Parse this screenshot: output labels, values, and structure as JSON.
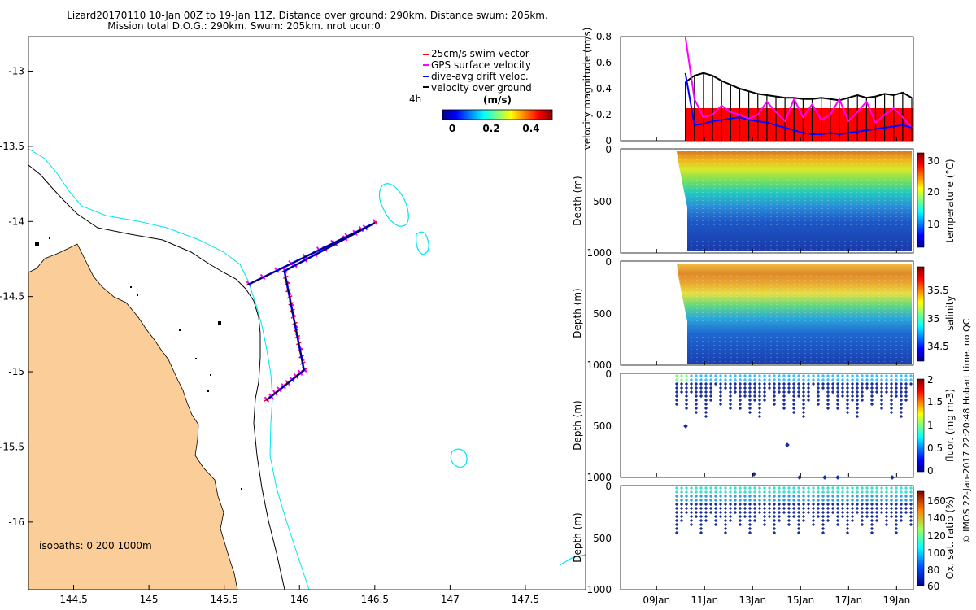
{
  "colors": {
    "land": "#fbcd98",
    "cyan": "#00e5ee",
    "red": "#ff0000",
    "magenta": "#ff00ff",
    "blue": "#0000ff",
    "black": "#000000",
    "grid": "#000000"
  },
  "chart_data": [
    {
      "type": "map",
      "title_line1": "Lizard20170110 10-Jan 00Z to 19-Jan 11Z. Distance over ground: 290km. Distance swum: 205km.",
      "title_line2": "Mission total D.O.G.: 290km. Swum: 205km. nrot ucur:0",
      "xlim": [
        144.2,
        147.9
      ],
      "ylim": [
        -16.45,
        -12.77
      ],
      "x_ticks": [
        144.5,
        145,
        145.5,
        146,
        146.5,
        147,
        147.5
      ],
      "x_tick_labels": [
        "144.5",
        "145",
        "145.5",
        "146",
        "146.5",
        "147",
        "147.5"
      ],
      "y_ticks": [
        -13,
        -13.5,
        -14,
        -14.5,
        -15,
        -15.5,
        -16
      ],
      "y_tick_labels": [
        "-13",
        "-13.5",
        "-14",
        "-14.5",
        "-15",
        "-15.5",
        "-16"
      ],
      "legend": [
        {
          "label": "25cm/s swim vector",
          "color": "#ff0000"
        },
        {
          "label": "GPS surface velocity",
          "color": "#ff00ff"
        },
        {
          "label": "dive-avg drift veloc.",
          "color": "#0000ff"
        },
        {
          "label": "velocity over ground",
          "color": "#000000"
        }
      ],
      "colorbar": {
        "label": "(m/s)",
        "ticks": [
          "0",
          "0.2",
          "0.4"
        ],
        "range": [
          0,
          0.5
        ]
      },
      "time_marker": "4h",
      "isobaths_label": "isobaths: 0   200  1000m",
      "track": [
        [
          145.66,
          -14.42
        ],
        [
          146.5,
          -14.01
        ],
        [
          145.9,
          -14.33
        ],
        [
          146.03,
          -14.99
        ],
        [
          145.78,
          -15.19
        ]
      ]
    },
    {
      "type": "line",
      "ylabel": "velocity magnitude (m/s)",
      "ylim": [
        0,
        0.8
      ],
      "y_ticks": [
        "0",
        "0.2",
        "0.4",
        "0.6",
        "0.8"
      ],
      "x_range_days": [
        7.5,
        19.7
      ],
      "start_day": 10.2,
      "series": [
        {
          "name": "velocity over ground",
          "color": "#000000",
          "values": [
            0.45,
            0.5,
            0.52,
            0.5,
            0.46,
            0.43,
            0.4,
            0.38,
            0.36,
            0.35,
            0.34,
            0.33,
            0.33,
            0.32,
            0.32,
            0.33,
            0.32,
            0.31,
            0.33,
            0.35,
            0.33,
            0.34,
            0.36,
            0.35,
            0.37,
            0.33
          ]
        },
        {
          "name": "GPS surface velocity",
          "color": "#ff00ff",
          "values": [
            0.8,
            0.32,
            0.18,
            0.2,
            0.27,
            0.22,
            0.2,
            0.17,
            0.2,
            0.3,
            0.22,
            0.15,
            0.32,
            0.18,
            0.28,
            0.16,
            0.2,
            0.32,
            0.15,
            0.22,
            0.3,
            0.14,
            0.2,
            0.25,
            0.18,
            0.1
          ]
        },
        {
          "name": "dive-avg drift veloc.",
          "color": "#0000ff",
          "values": [
            0.52,
            0.12,
            0.13,
            0.15,
            0.16,
            0.17,
            0.18,
            0.16,
            0.15,
            0.14,
            0.12,
            0.1,
            0.08,
            0.06,
            0.05,
            0.05,
            0.06,
            0.05,
            0.06,
            0.07,
            0.08,
            0.09,
            0.1,
            0.11,
            0.12,
            0.1
          ]
        },
        {
          "name": "25cm/s swim vector",
          "color": "#ff0000",
          "values": [
            0.25
          ]
        }
      ]
    },
    {
      "type": "heatmap",
      "ylabel": "Depth (m)",
      "clabel": "temperature (°C)",
      "y_ticks": [
        "0",
        "500",
        "1000"
      ],
      "c_ticks": [
        "10",
        "20",
        "30"
      ]
    },
    {
      "type": "heatmap",
      "ylabel": "Depth (m)",
      "clabel": "salinity",
      "y_ticks": [
        "0",
        "500",
        "1000"
      ],
      "c_ticks": [
        "34.5",
        "35",
        "35.5"
      ]
    },
    {
      "type": "scatter",
      "ylabel": "Depth (m)",
      "clabel": "fluor. (mg m-3)",
      "y_ticks": [
        "0",
        "500",
        "1000"
      ],
      "c_ticks": [
        "0",
        "0.5",
        "1",
        "1.5",
        "2"
      ]
    },
    {
      "type": "scatter",
      "ylabel": "Depth (m)",
      "clabel": "Ox. sat. ratio (%)",
      "y_ticks": [
        "0",
        "500",
        "1000"
      ],
      "c_ticks": [
        "60",
        "80",
        "100",
        "120",
        "140",
        "160"
      ],
      "x_tick_labels": [
        "09Jan",
        "11Jan",
        "13Jan",
        "15Jan",
        "17Jan",
        "19Jan"
      ]
    }
  ],
  "footer_note": "© IMOS 22-Jan-2017 22:20:48 Hobart time. no QC"
}
